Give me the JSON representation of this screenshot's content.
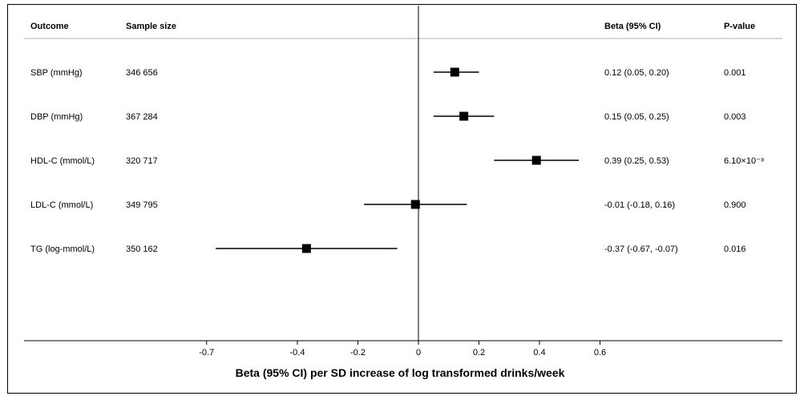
{
  "chart_data": {
    "type": "forest",
    "columns": {
      "outcome": "Outcome",
      "sample_size": "Sample size",
      "beta": "Beta (95% CI)",
      "pvalue": "P-value"
    },
    "rows": [
      {
        "outcome": "SBP (mmHg)",
        "sample_size": "346 656",
        "estimate": 0.12,
        "ci_low": 0.05,
        "ci_high": 0.2,
        "beta_text": "0.12 (0.05, 0.20)",
        "pvalue": "0.001"
      },
      {
        "outcome": "DBP (mmHg)",
        "sample_size": "367 284",
        "estimate": 0.15,
        "ci_low": 0.05,
        "ci_high": 0.25,
        "beta_text": "0.15 (0.05, 0.25)",
        "pvalue": "0.003"
      },
      {
        "outcome": "HDL-C (mmol/L)",
        "sample_size": "320 717",
        "estimate": 0.39,
        "ci_low": 0.25,
        "ci_high": 0.53,
        "beta_text": "0.39 (0.25, 0.53)",
        "pvalue": "6.10×10⁻⁸"
      },
      {
        "outcome": "LDL-C (mmol/L)",
        "sample_size": "349 795",
        "estimate": -0.01,
        "ci_low": -0.18,
        "ci_high": 0.16,
        "beta_text": "-0.01 (-0.18, 0.16)",
        "pvalue": "0.900"
      },
      {
        "outcome": "TG (log-mmol/L)",
        "sample_size": "350 162",
        "estimate": -0.37,
        "ci_low": -0.67,
        "ci_high": -0.07,
        "beta_text": "-0.37 (-0.67, -0.07)",
        "pvalue": "0.016"
      }
    ],
    "x_ticks": [
      -0.7,
      -0.4,
      -0.2,
      0,
      0.2,
      0.4,
      0.6
    ],
    "x_tick_labels": [
      "-0.7",
      "-0.4",
      "-0.2",
      "0",
      "0.2",
      "0.4",
      "0.6"
    ],
    "xlabel": "Beta (95% CI) per SD increase of log transformed drinks/week",
    "reference_line": 0
  }
}
